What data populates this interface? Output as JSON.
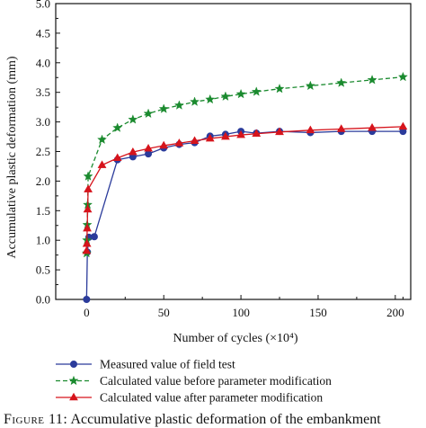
{
  "chart_data": {
    "type": "line",
    "title": "",
    "xlabel": "Number of cycles (×10⁴)",
    "ylabel": "Accumulative plastic deformation (mm)",
    "xlim": [
      -20,
      210
    ],
    "ylim": [
      0,
      5.0
    ],
    "x_ticks": [
      0,
      50,
      100,
      150,
      200
    ],
    "y_ticks": [
      0.0,
      0.5,
      1.0,
      1.5,
      2.0,
      2.5,
      3.0,
      3.5,
      4.0,
      4.5,
      5.0
    ],
    "x_tick_labels": [
      "0",
      "50",
      "100",
      "150",
      "200"
    ],
    "y_tick_labels": [
      "0.0",
      "0.5",
      "1.0",
      "1.5",
      "2.0",
      "2.5",
      "3.0",
      "3.5",
      "4.0",
      "4.5",
      "5.0"
    ],
    "grid": false,
    "legend_position": "bottom",
    "series": [
      {
        "name": "Measured value of field test",
        "color": "#2b3b9b",
        "marker": "circle",
        "line_style": "solid",
        "points": [
          [
            0,
            0.0
          ],
          [
            0.5,
            0.8
          ],
          [
            1.5,
            1.05
          ],
          [
            5,
            1.06
          ],
          [
            20,
            2.36
          ],
          [
            30,
            2.41
          ],
          [
            40,
            2.46
          ],
          [
            50,
            2.56
          ],
          [
            60,
            2.62
          ],
          [
            70,
            2.65
          ],
          [
            80,
            2.76
          ],
          [
            90,
            2.79
          ],
          [
            100,
            2.84
          ],
          [
            110,
            2.81
          ],
          [
            125,
            2.84
          ],
          [
            145,
            2.82
          ],
          [
            165,
            2.84
          ],
          [
            185,
            2.84
          ],
          [
            205,
            2.84
          ]
        ]
      },
      {
        "name": "Calculated value before parameter modification",
        "color": "#1a8a2e",
        "marker": "star",
        "line_style": "dashed",
        "points": [
          [
            0,
            0.78
          ],
          [
            0.2,
            1.0
          ],
          [
            0.4,
            1.26
          ],
          [
            0.7,
            1.6
          ],
          [
            1.0,
            2.08
          ],
          [
            10,
            2.7
          ],
          [
            20,
            2.9
          ],
          [
            30,
            3.04
          ],
          [
            40,
            3.14
          ],
          [
            50,
            3.22
          ],
          [
            60,
            3.28
          ],
          [
            70,
            3.34
          ],
          [
            80,
            3.38
          ],
          [
            90,
            3.43
          ],
          [
            100,
            3.47
          ],
          [
            110,
            3.51
          ],
          [
            125,
            3.56
          ],
          [
            145,
            3.61
          ],
          [
            165,
            3.66
          ],
          [
            185,
            3.71
          ],
          [
            205,
            3.76
          ]
        ]
      },
      {
        "name": "Calculated value after parameter modification",
        "color": "#d6141c",
        "marker": "triangle",
        "line_style": "solid",
        "points": [
          [
            0,
            0.82
          ],
          [
            0.2,
            0.94
          ],
          [
            0.4,
            1.2
          ],
          [
            0.7,
            1.52
          ],
          [
            1.0,
            1.86
          ],
          [
            10,
            2.27
          ],
          [
            20,
            2.39
          ],
          [
            30,
            2.49
          ],
          [
            40,
            2.55
          ],
          [
            50,
            2.6
          ],
          [
            60,
            2.64
          ],
          [
            70,
            2.68
          ],
          [
            80,
            2.72
          ],
          [
            90,
            2.75
          ],
          [
            100,
            2.78
          ],
          [
            110,
            2.8
          ],
          [
            125,
            2.83
          ],
          [
            145,
            2.86
          ],
          [
            165,
            2.88
          ],
          [
            185,
            2.9
          ],
          [
            205,
            2.92
          ]
        ]
      }
    ]
  },
  "caption": {
    "label": "Figure 11:",
    "text": "Accumulative plastic deformation of the embankment"
  }
}
